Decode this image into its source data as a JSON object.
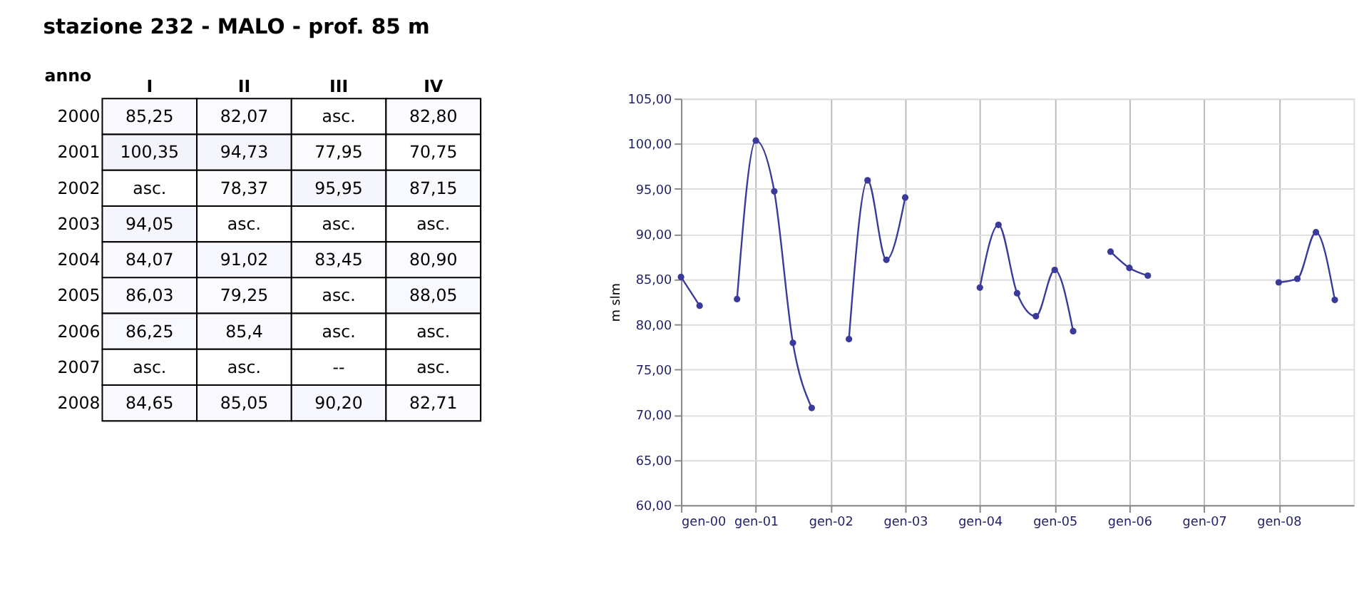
{
  "chart_data": [
    {
      "type": "heatmap",
      "title": "stazione 232 - MALO - prof. 85 m",
      "ylabel": "anno",
      "categories": [
        "I",
        "II",
        "III",
        "IV"
      ],
      "y_categories": [
        "2000",
        "2001",
        "2002",
        "2003",
        "2004",
        "2005",
        "2006",
        "2007",
        "2008"
      ],
      "cells": [
        [
          85.25,
          82.07,
          null,
          82.8
        ],
        [
          100.35,
          94.73,
          77.95,
          70.75
        ],
        [
          null,
          78.37,
          95.95,
          87.15
        ],
        [
          94.05,
          null,
          null,
          null
        ],
        [
          84.07,
          91.02,
          83.45,
          80.9
        ],
        [
          86.03,
          79.25,
          null,
          88.05
        ],
        [
          86.25,
          85.4,
          null,
          null
        ],
        [
          null,
          null,
          null,
          null
        ],
        [
          84.65,
          85.05,
          90.2,
          82.71
        ]
      ],
      "cell_labels": [
        [
          "85,25",
          "82,07",
          "asc.",
          "82,80"
        ],
        [
          "100,35",
          "94,73",
          "77,95",
          "70,75"
        ],
        [
          "asc.",
          "78,37",
          "95,95",
          "87,15"
        ],
        [
          "94,05",
          "asc.",
          "asc.",
          "asc."
        ],
        [
          "84,07",
          "91,02",
          "83,45",
          "80,90"
        ],
        [
          "86,03",
          "79,25",
          "asc.",
          "88,05"
        ],
        [
          "86,25",
          "85,4",
          "asc.",
          "asc."
        ],
        [
          "asc.",
          "asc.",
          "--",
          "asc."
        ],
        [
          "84,65",
          "85,05",
          "90,20",
          "82,71"
        ]
      ]
    },
    {
      "type": "line",
      "ylabel": "m slm",
      "marker": "circle",
      "grid": true,
      "x": [
        "2000-01",
        "2000-04",
        "2000-07",
        "2000-10",
        "2001-01",
        "2001-04",
        "2001-07",
        "2001-10",
        "2002-01",
        "2002-04",
        "2002-07",
        "2002-10",
        "2003-01",
        "2003-04",
        "2003-07",
        "2003-10",
        "2004-01",
        "2004-04",
        "2004-07",
        "2004-10",
        "2005-01",
        "2005-04",
        "2005-07",
        "2005-10",
        "2006-01",
        "2006-04",
        "2006-07",
        "2006-10",
        "2007-01",
        "2007-04",
        "2007-07",
        "2007-10",
        "2008-01",
        "2008-04",
        "2008-07",
        "2008-10"
      ],
      "series": [
        {
          "color": "#3a3a9a",
          "values": [
            85.25,
            82.07,
            null,
            82.8,
            100.35,
            94.73,
            77.95,
            70.75,
            null,
            78.37,
            95.95,
            87.15,
            94.05,
            null,
            null,
            null,
            84.07,
            91.02,
            83.45,
            80.9,
            86.03,
            79.25,
            null,
            88.05,
            86.25,
            85.4,
            null,
            null,
            null,
            null,
            null,
            null,
            84.65,
            85.05,
            90.2,
            82.71
          ]
        }
      ],
      "xlim": [
        "2000-01",
        "2009-01"
      ],
      "xticks": [
        {
          "value": "2000-01",
          "label": "gen-00"
        },
        {
          "value": "2001-01",
          "label": "gen-01"
        },
        {
          "value": "2002-01",
          "label": "gen-02"
        },
        {
          "value": "2003-01",
          "label": "gen-03"
        },
        {
          "value": "2004-01",
          "label": "gen-04"
        },
        {
          "value": "2005-01",
          "label": "gen-05"
        },
        {
          "value": "2006-01",
          "label": "gen-06"
        },
        {
          "value": "2007-01",
          "label": "gen-07"
        },
        {
          "value": "2008-01",
          "label": "gen-08"
        }
      ],
      "ylim": [
        60,
        105
      ],
      "yticks": [
        {
          "value": 60,
          "label": "60,00"
        },
        {
          "value": 65,
          "label": "65,00"
        },
        {
          "value": 70,
          "label": "70,00"
        },
        {
          "value": 75,
          "label": "75,00"
        },
        {
          "value": 80,
          "label": "80,00"
        },
        {
          "value": 85,
          "label": "85,00"
        },
        {
          "value": 90,
          "label": "90,00"
        },
        {
          "value": 95,
          "label": "95,00"
        },
        {
          "value": 100,
          "label": "100,00"
        },
        {
          "value": 105,
          "label": "105,00"
        }
      ]
    }
  ]
}
